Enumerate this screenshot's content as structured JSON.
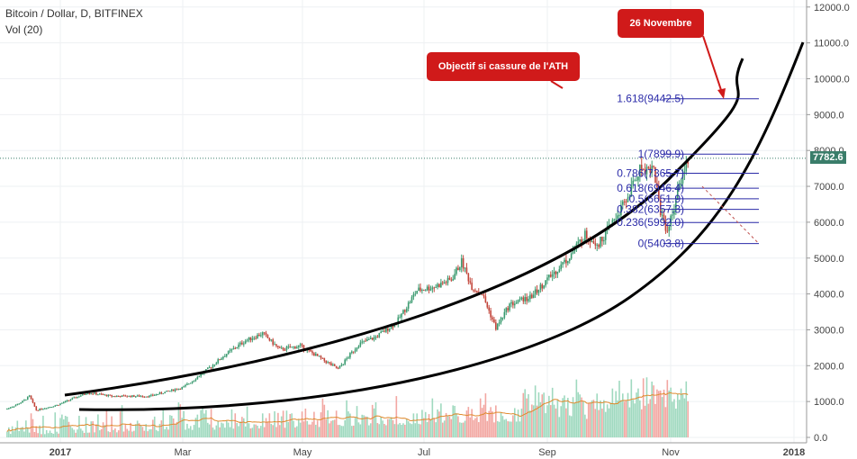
{
  "header": {
    "symbol": "Bitcoin / Dollar, D, BITFINEX",
    "indicator": "Vol (20)"
  },
  "last_price": "7782.6",
  "annotations": {
    "ath_target": "Objectif si cassure de l'ATH",
    "date_target": "26 Novembre"
  },
  "colors": {
    "up": "#3a9a6f",
    "down": "#c2453a",
    "vol_up": "#9fd9bf",
    "vol_down": "#f2a7a2",
    "fib": "#2a2aa8",
    "callout": "#d01a1a",
    "vol_ma": "#e08a2e"
  },
  "chart_data": {
    "type": "candlestick",
    "title": "Bitcoin / Dollar, D, BITFINEX",
    "y_ticks": [
      "12000.0",
      "11000.0",
      "10000.0",
      "9000.0",
      "8000.0",
      "7000.0",
      "6000.0",
      "5000.0",
      "4000.0",
      "3000.0",
      "2000.0",
      "1000.0",
      "0.0"
    ],
    "x_ticks": [
      "2017",
      "Mar",
      "May",
      "Jul",
      "Sep",
      "Nov",
      "2018"
    ],
    "price_path": [
      [
        0,
        780
      ],
      [
        6,
        900
      ],
      [
        10,
        1000
      ],
      [
        14,
        1150
      ],
      [
        18,
        760
      ],
      [
        30,
        900
      ],
      [
        48,
        1250
      ],
      [
        62,
        1150
      ],
      [
        84,
        1150
      ],
      [
        104,
        1400
      ],
      [
        118,
        1900
      ],
      [
        128,
        2300
      ],
      [
        140,
        2700
      ],
      [
        150,
        2900
      ],
      [
        160,
        2450
      ],
      [
        172,
        2550
      ],
      [
        184,
        2200
      ],
      [
        194,
        1900
      ],
      [
        206,
        2600
      ],
      [
        216,
        2800
      ],
      [
        228,
        3200
      ],
      [
        240,
        4100
      ],
      [
        250,
        4200
      ],
      [
        260,
        4400
      ],
      [
        266,
        4900
      ],
      [
        272,
        4200
      ],
      [
        278,
        4000
      ],
      [
        286,
        3050
      ],
      [
        294,
        3700
      ],
      [
        306,
        3900
      ],
      [
        318,
        4500
      ],
      [
        328,
        5000
      ],
      [
        338,
        5650
      ],
      [
        346,
        5400
      ],
      [
        354,
        6000
      ],
      [
        362,
        6600
      ],
      [
        370,
        7500
      ],
      [
        378,
        7500
      ],
      [
        382,
        6300
      ],
      [
        386,
        5750
      ],
      [
        390,
        6450
      ],
      [
        394,
        7200
      ],
      [
        398,
        7782.6
      ]
    ],
    "fibonacci": [
      {
        "label": "1.618(9442.5)",
        "value": 9442.5
      },
      {
        "label": "1(7899.9)",
        "value": 7899.9
      },
      {
        "label": "0.786(7365.7)",
        "value": 7365.7
      },
      {
        "label": "0.618(6946.4)",
        "value": 6946.4
      },
      {
        "label": "0.5(6651.9)",
        "value": 6651.9
      },
      {
        "label": "0.382(6357.3)",
        "value": 6357.3
      },
      {
        "label": "0.236(5992.0)",
        "value": 5992.0
      },
      {
        "label": "0(5403.8)",
        "value": 5403.8
      }
    ]
  }
}
